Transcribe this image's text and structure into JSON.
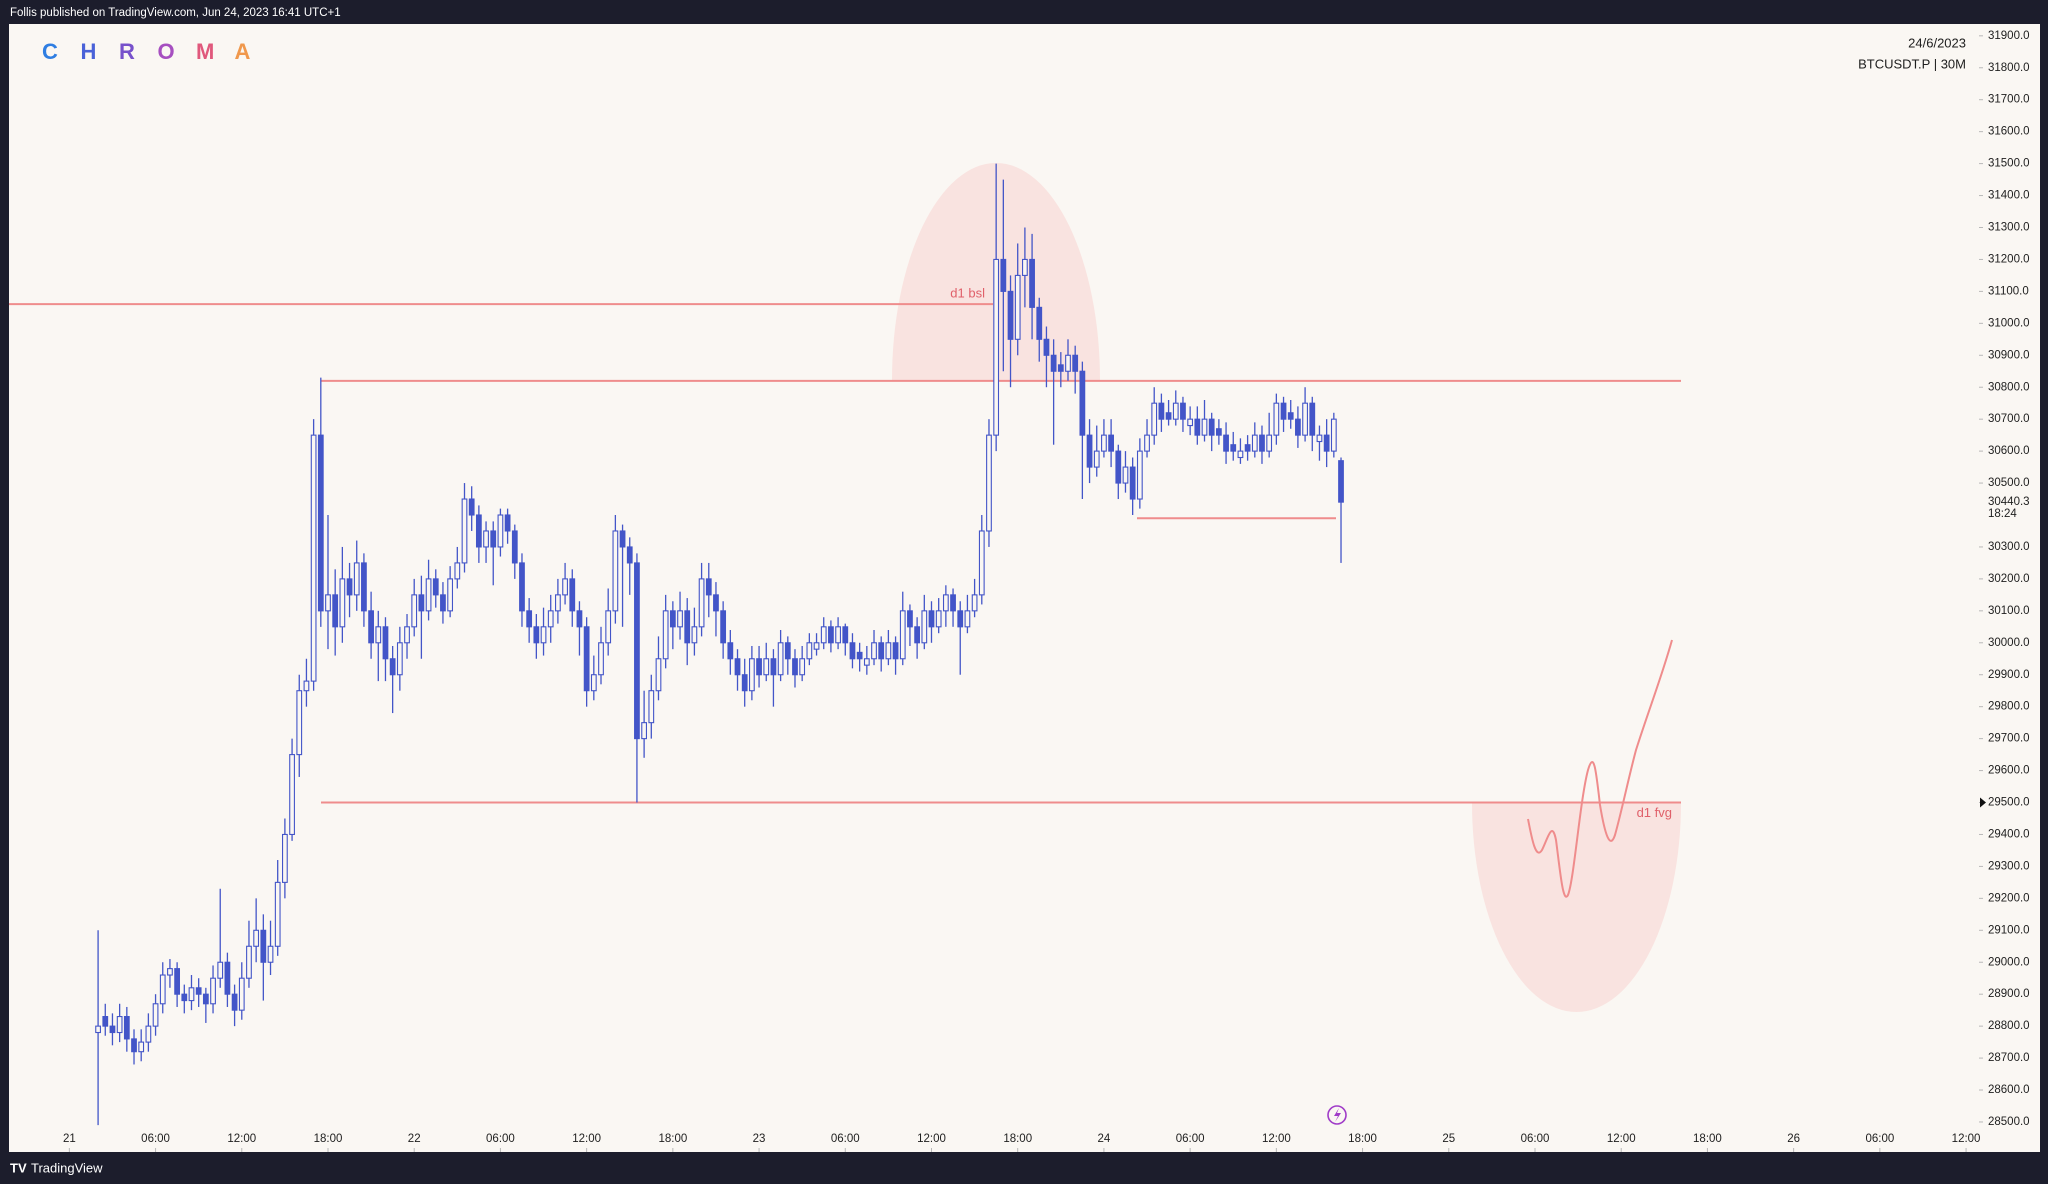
{
  "header": "Follis published on TradingView.com, Jun 24, 2023 16:41 UTC+1",
  "logo": [
    "C",
    "H",
    "R",
    "O",
    "M",
    "A"
  ],
  "logo_colors": [
    "#2f7ee2",
    "#4a62d8",
    "#7751cb",
    "#a64fc0",
    "#e0587c",
    "#f0984c"
  ],
  "footer": "TradingView",
  "chart_data": {
    "type": "candlestick",
    "date": "24/6/2023",
    "symbol": "BTCUSDT.P | 30M",
    "color": "#4355c8",
    "annotation_color": "#ef8c8c",
    "last_price": 30440.3,
    "countdown": "18:24",
    "xlim": [
      -4.2,
      132.9
    ],
    "ylim": [
      28406,
      31937
    ],
    "xticks": [
      {
        "value": 0,
        "label": "21"
      },
      {
        "value": 6,
        "label": "06:00"
      },
      {
        "value": 12,
        "label": "12:00"
      },
      {
        "value": 18,
        "label": "18:00"
      },
      {
        "value": 24,
        "label": "22"
      },
      {
        "value": 30,
        "label": "06:00"
      },
      {
        "value": 36,
        "label": "12:00"
      },
      {
        "value": 42,
        "label": "18:00"
      },
      {
        "value": 48,
        "label": "23"
      },
      {
        "value": 54,
        "label": "06:00"
      },
      {
        "value": 60,
        "label": "12:00"
      },
      {
        "value": 66,
        "label": "18:00"
      },
      {
        "value": 72,
        "label": "24"
      },
      {
        "value": 78,
        "label": "06:00"
      },
      {
        "value": 84,
        "label": "12:00"
      },
      {
        "value": 90,
        "label": "18:00"
      },
      {
        "value": 96,
        "label": "25"
      },
      {
        "value": 102,
        "label": "06:00"
      },
      {
        "value": 108,
        "label": "12:00"
      },
      {
        "value": 114,
        "label": "18:00"
      },
      {
        "value": 120,
        "label": "26"
      },
      {
        "value": 126,
        "label": "06:00"
      },
      {
        "value": 132,
        "label": "12:00"
      }
    ],
    "yticks": [
      {
        "value": 28500,
        "label": "28500.0"
      },
      {
        "value": 28600,
        "label": "28600.0"
      },
      {
        "value": 28700,
        "label": "28700.0"
      },
      {
        "value": 28800,
        "label": "28800.0"
      },
      {
        "value": 28900,
        "label": "28900.0"
      },
      {
        "value": 29000,
        "label": "29000.0"
      },
      {
        "value": 29100,
        "label": "29100.0"
      },
      {
        "value": 29200,
        "label": "29200.0"
      },
      {
        "value": 29300,
        "label": "29300.0"
      },
      {
        "value": 29400,
        "label": "29400.0"
      },
      {
        "value": 29500,
        "label": "29500.0"
      },
      {
        "value": 29600,
        "label": "29600.0"
      },
      {
        "value": 29700,
        "label": "29700.0"
      },
      {
        "value": 29800,
        "label": "29800.0"
      },
      {
        "value": 29900,
        "label": "29900.0"
      },
      {
        "value": 30000,
        "label": "30000.0"
      },
      {
        "value": 30100,
        "label": "30100.0"
      },
      {
        "value": 30200,
        "label": "30200.0"
      },
      {
        "value": 30300,
        "label": "30300.0"
      },
      {
        "value": 30500,
        "label": "30500.0"
      },
      {
        "value": 30600,
        "label": "30600.0"
      },
      {
        "value": 30700,
        "label": "30700.0"
      },
      {
        "value": 30800,
        "label": "30800.0"
      },
      {
        "value": 30900,
        "label": "30900.0"
      },
      {
        "value": 31000,
        "label": "31000.0"
      },
      {
        "value": 31100,
        "label": "31100.0"
      },
      {
        "value": 31200,
        "label": "31200.0"
      },
      {
        "value": 31300,
        "label": "31300.0"
      },
      {
        "value": 31400,
        "label": "31400.0"
      },
      {
        "value": 31500,
        "label": "31500.0"
      },
      {
        "value": 31600,
        "label": "31600.0"
      },
      {
        "value": 31700,
        "label": "31700.0"
      },
      {
        "value": 31800,
        "label": "31800.0"
      },
      {
        "value": 31900,
        "label": "31900.0"
      }
    ],
    "levels": [
      {
        "label": "d1 bsl",
        "value": 31060
      },
      {
        "value": 30820
      },
      {
        "label": "d1 fvg",
        "value": 29500
      },
      {
        "value": 30390
      }
    ],
    "x": [
      2,
      2.5,
      3,
      3.5,
      4,
      4.5,
      5,
      5.5,
      6,
      6.5,
      7,
      7.5,
      8,
      8.5,
      9,
      9.5,
      10,
      10.5,
      11,
      11.5,
      12,
      12.5,
      13,
      13.5,
      14,
      14.5,
      15,
      15.5,
      16,
      16.5,
      17,
      17.5,
      18,
      18.5,
      19,
      19.5,
      20,
      20.5,
      21,
      21.5,
      22,
      22.5,
      23,
      23.5,
      24,
      24.5,
      25,
      25.5,
      26,
      26.5,
      27,
      27.5,
      28,
      28.5,
      29,
      29.5,
      30,
      30.5,
      31,
      31.5,
      32,
      32.5,
      33,
      33.5,
      34,
      34.5,
      35,
      35.5,
      36,
      36.5,
      37,
      37.5,
      38,
      38.5,
      39,
      39.5,
      40,
      40.5,
      41,
      41.5,
      42,
      42.5,
      43,
      43.5,
      44,
      44.5,
      45,
      45.5,
      46,
      46.5,
      47,
      47.5,
      48,
      48.5,
      49,
      49.5,
      50,
      50.5,
      51,
      51.5,
      52,
      52.5,
      53,
      53.5,
      54,
      54.5,
      55,
      55.5,
      56,
      56.5,
      57,
      57.5,
      58,
      58.5,
      59,
      59.5,
      60,
      60.5,
      61,
      61.5,
      62,
      62.5,
      63,
      63.5,
      64,
      64.5,
      65,
      65.5,
      66,
      66.5,
      67,
      67.5,
      68,
      68.5,
      69,
      69.5,
      70,
      70.5,
      71,
      71.5,
      72,
      72.5,
      73,
      73.5,
      74,
      74.5,
      75,
      75.5,
      76,
      76.5,
      77,
      77.5,
      78,
      78.5,
      79,
      79.5,
      80,
      80.5,
      81,
      81.5,
      82,
      82.5,
      83,
      83.5,
      84,
      84.5,
      85,
      85.5,
      86,
      86.5,
      87,
      87.5,
      88,
      88.5
    ],
    "ohlc": [
      [
        28780,
        29100,
        28490,
        28800
      ],
      [
        28830,
        28870,
        28770,
        28800
      ],
      [
        28800,
        28840,
        28740,
        28780
      ],
      [
        28780,
        28870,
        28750,
        28830
      ],
      [
        28830,
        28860,
        28720,
        28760
      ],
      [
        28760,
        28790,
        28680,
        28720
      ],
      [
        28720,
        28790,
        28690,
        28750
      ],
      [
        28750,
        28840,
        28720,
        28800
      ],
      [
        28800,
        28900,
        28770,
        28870
      ],
      [
        28870,
        29000,
        28840,
        28960
      ],
      [
        28960,
        29010,
        28920,
        28980
      ],
      [
        28980,
        29000,
        28860,
        28900
      ],
      [
        28900,
        28930,
        28840,
        28880
      ],
      [
        28880,
        28960,
        28850,
        28920
      ],
      [
        28920,
        28950,
        28860,
        28900
      ],
      [
        28900,
        28920,
        28810,
        28870
      ],
      [
        28870,
        28990,
        28840,
        28950
      ],
      [
        28950,
        29230,
        28920,
        29000
      ],
      [
        29000,
        29030,
        28860,
        28900
      ],
      [
        28900,
        28930,
        28800,
        28850
      ],
      [
        28850,
        29000,
        28820,
        28950
      ],
      [
        28950,
        29130,
        28920,
        29050
      ],
      [
        29050,
        29200,
        29000,
        29100
      ],
      [
        29100,
        29150,
        28880,
        29000
      ],
      [
        29000,
        29130,
        28960,
        29050
      ],
      [
        29050,
        29320,
        29020,
        29250
      ],
      [
        29250,
        29450,
        29200,
        29400
      ],
      [
        29400,
        29700,
        29380,
        29650
      ],
      [
        29650,
        29900,
        29580,
        29850
      ],
      [
        29850,
        29950,
        29800,
        29880
      ],
      [
        29880,
        30700,
        29850,
        30650
      ],
      [
        30650,
        30830,
        30050,
        30100
      ],
      [
        30100,
        30400,
        29980,
        30150
      ],
      [
        30150,
        30230,
        29960,
        30050
      ],
      [
        30050,
        30300,
        30000,
        30200
      ],
      [
        30200,
        30250,
        30080,
        30150
      ],
      [
        30150,
        30320,
        30100,
        30250
      ],
      [
        30250,
        30280,
        30050,
        30100
      ],
      [
        30100,
        30160,
        29950,
        30000
      ],
      [
        30000,
        30100,
        29880,
        30050
      ],
      [
        30050,
        30080,
        29880,
        29950
      ],
      [
        29950,
        29990,
        29780,
        29900
      ],
      [
        29900,
        30050,
        29850,
        30000
      ],
      [
        30000,
        30090,
        29950,
        30050
      ],
      [
        30050,
        30200,
        30020,
        30150
      ],
      [
        30150,
        30210,
        29950,
        30100
      ],
      [
        30100,
        30260,
        30070,
        30200
      ],
      [
        30200,
        30230,
        30110,
        30150
      ],
      [
        30150,
        30190,
        30060,
        30100
      ],
      [
        30100,
        30240,
        30080,
        30200
      ],
      [
        30200,
        30300,
        30170,
        30250
      ],
      [
        30250,
        30500,
        30220,
        30450
      ],
      [
        30450,
        30490,
        30350,
        30400
      ],
      [
        30400,
        30430,
        30250,
        30300
      ],
      [
        30300,
        30380,
        30250,
        30350
      ],
      [
        30350,
        30380,
        30180,
        30300
      ],
      [
        30300,
        30420,
        30270,
        30400
      ],
      [
        30400,
        30420,
        30310,
        30350
      ],
      [
        30350,
        30370,
        30200,
        30250
      ],
      [
        30250,
        30280,
        30050,
        30100
      ],
      [
        30100,
        30140,
        30000,
        30050
      ],
      [
        30050,
        30090,
        29950,
        30000
      ],
      [
        30000,
        30110,
        29960,
        30050
      ],
      [
        30050,
        30150,
        30000,
        30100
      ],
      [
        30100,
        30200,
        30060,
        30150
      ],
      [
        30150,
        30250,
        30120,
        30200
      ],
      [
        30200,
        30230,
        30050,
        30100
      ],
      [
        30100,
        30130,
        29960,
        30050
      ],
      [
        30050,
        30080,
        29800,
        29850
      ],
      [
        29850,
        29960,
        29820,
        29900
      ],
      [
        29900,
        30050,
        29870,
        30000
      ],
      [
        30000,
        30170,
        29960,
        30100
      ],
      [
        30100,
        30400,
        30060,
        30350
      ],
      [
        30350,
        30370,
        30050,
        30300
      ],
      [
        30300,
        30330,
        30150,
        30250
      ],
      [
        30250,
        30280,
        29500,
        29700
      ],
      [
        29700,
        29850,
        29640,
        29750
      ],
      [
        29750,
        29900,
        29700,
        29850
      ],
      [
        29850,
        30020,
        29820,
        29950
      ],
      [
        29950,
        30150,
        29920,
        30100
      ],
      [
        30100,
        30130,
        29980,
        30050
      ],
      [
        30050,
        30160,
        30010,
        30100
      ],
      [
        30100,
        30140,
        29930,
        30000
      ],
      [
        30000,
        30110,
        29960,
        30050
      ],
      [
        30050,
        30250,
        30020,
        30200
      ],
      [
        30200,
        30250,
        30080,
        30150
      ],
      [
        30150,
        30190,
        30020,
        30100
      ],
      [
        30100,
        30130,
        29950,
        30000
      ],
      [
        30000,
        30040,
        29900,
        29950
      ],
      [
        29950,
        29980,
        29850,
        29900
      ],
      [
        29900,
        29950,
        29800,
        29850
      ],
      [
        29850,
        29990,
        29820,
        29950
      ],
      [
        29950,
        29990,
        29860,
        29900
      ],
      [
        29900,
        30000,
        29880,
        29950
      ],
      [
        29950,
        29980,
        29800,
        29900
      ],
      [
        29900,
        30040,
        29880,
        30000
      ],
      [
        30000,
        30020,
        29900,
        29950
      ],
      [
        29950,
        29980,
        29860,
        29900
      ],
      [
        29900,
        29990,
        29880,
        29950
      ],
      [
        29950,
        30030,
        29930,
        30000
      ],
      [
        29980,
        30030,
        29960,
        30000
      ],
      [
        30000,
        30080,
        29980,
        30050
      ],
      [
        30050,
        30070,
        29970,
        30000
      ],
      [
        30000,
        30080,
        29980,
        30050
      ],
      [
        30050,
        30060,
        29960,
        30000
      ],
      [
        30000,
        30030,
        29920,
        29950
      ],
      [
        29970,
        30000,
        29910,
        29950
      ],
      [
        29930,
        29990,
        29900,
        29950
      ],
      [
        29950,
        30040,
        29930,
        30000
      ],
      [
        30000,
        30020,
        29910,
        29950
      ],
      [
        29950,
        30040,
        29930,
        30000
      ],
      [
        30000,
        30020,
        29900,
        29950
      ],
      [
        29950,
        30160,
        29930,
        30100
      ],
      [
        30100,
        30120,
        29990,
        30050
      ],
      [
        30050,
        30080,
        29950,
        30000
      ],
      [
        30000,
        30150,
        29980,
        30100
      ],
      [
        30100,
        30130,
        30000,
        30050
      ],
      [
        30050,
        30140,
        30030,
        30100
      ],
      [
        30100,
        30180,
        30050,
        30150
      ],
      [
        30150,
        30170,
        30050,
        30100
      ],
      [
        30100,
        30130,
        29900,
        30050
      ],
      [
        30050,
        30150,
        30030,
        30100
      ],
      [
        30100,
        30200,
        30080,
        30150
      ],
      [
        30150,
        30400,
        30120,
        30350
      ],
      [
        30350,
        30700,
        30300,
        30650
      ],
      [
        30650,
        31500,
        30600,
        31200
      ],
      [
        31200,
        31450,
        30850,
        31100
      ],
      [
        31100,
        31150,
        30800,
        30950
      ],
      [
        30950,
        31250,
        30900,
        31150
      ],
      [
        31150,
        31300,
        31050,
        31200
      ],
      [
        31200,
        31280,
        30950,
        31050
      ],
      [
        31050,
        31080,
        30880,
        30950
      ],
      [
        30950,
        30990,
        30800,
        30900
      ],
      [
        30900,
        30950,
        30620,
        30850
      ],
      [
        30870,
        30910,
        30800,
        30850
      ],
      [
        30850,
        30950,
        30820,
        30900
      ],
      [
        30900,
        30930,
        30780,
        30850
      ],
      [
        30850,
        30880,
        30450,
        30650
      ],
      [
        30650,
        30700,
        30500,
        30550
      ],
      [
        30550,
        30680,
        30520,
        30600
      ],
      [
        30600,
        30700,
        30580,
        30650
      ],
      [
        30650,
        30700,
        30550,
        30600
      ],
      [
        30600,
        30620,
        30450,
        30500
      ],
      [
        30500,
        30600,
        30470,
        30550
      ],
      [
        30550,
        30580,
        30400,
        30450
      ],
      [
        30450,
        30640,
        30420,
        30600
      ],
      [
        30600,
        30700,
        30580,
        30650
      ],
      [
        30650,
        30800,
        30620,
        30750
      ],
      [
        30750,
        30780,
        30660,
        30700
      ],
      [
        30720,
        30760,
        30680,
        30700
      ],
      [
        30700,
        30790,
        30680,
        30750
      ],
      [
        30750,
        30770,
        30660,
        30700
      ],
      [
        30680,
        30740,
        30650,
        30700
      ],
      [
        30700,
        30740,
        30620,
        30650
      ],
      [
        30650,
        30760,
        30630,
        30700
      ],
      [
        30700,
        30720,
        30600,
        30650
      ],
      [
        30670,
        30700,
        30620,
        30650
      ],
      [
        30650,
        30690,
        30560,
        30600
      ],
      [
        30620,
        30660,
        30570,
        30600
      ],
      [
        30580,
        30640,
        30560,
        30600
      ],
      [
        30620,
        30650,
        30570,
        30600
      ],
      [
        30600,
        30690,
        30580,
        30650
      ],
      [
        30650,
        30680,
        30560,
        30600
      ],
      [
        30600,
        30720,
        30580,
        30650
      ],
      [
        30650,
        30780,
        30620,
        30750
      ],
      [
        30750,
        30770,
        30660,
        30700
      ],
      [
        30720,
        30760,
        30670,
        30700
      ],
      [
        30700,
        30740,
        30610,
        30650
      ],
      [
        30650,
        30800,
        30630,
        30750
      ],
      [
        30750,
        30770,
        30600,
        30650
      ],
      [
        30630,
        30680,
        30570,
        30650
      ],
      [
        30650,
        30700,
        30550,
        30600
      ],
      [
        30600,
        30720,
        30580,
        30700
      ],
      [
        30570,
        30580,
        30250,
        30440.3
      ]
    ]
  }
}
